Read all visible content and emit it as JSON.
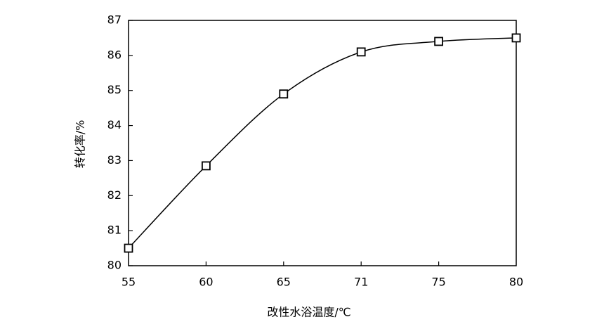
{
  "chart_data": {
    "type": "line",
    "x_label": "改性水浴温度/℃",
    "y_label": "转化率/%",
    "categories": [
      "55",
      "60",
      "65",
      "71",
      "75",
      "80"
    ],
    "series": [
      {
        "color": "#000000",
        "values": [
          80.5,
          82.85,
          84.9,
          86.1,
          86.4,
          86.5
        ]
      }
    ],
    "ylim": [
      80,
      87
    ],
    "yticks": [
      80,
      81,
      82,
      83,
      84,
      85,
      86,
      87
    ],
    "grid": false
  }
}
